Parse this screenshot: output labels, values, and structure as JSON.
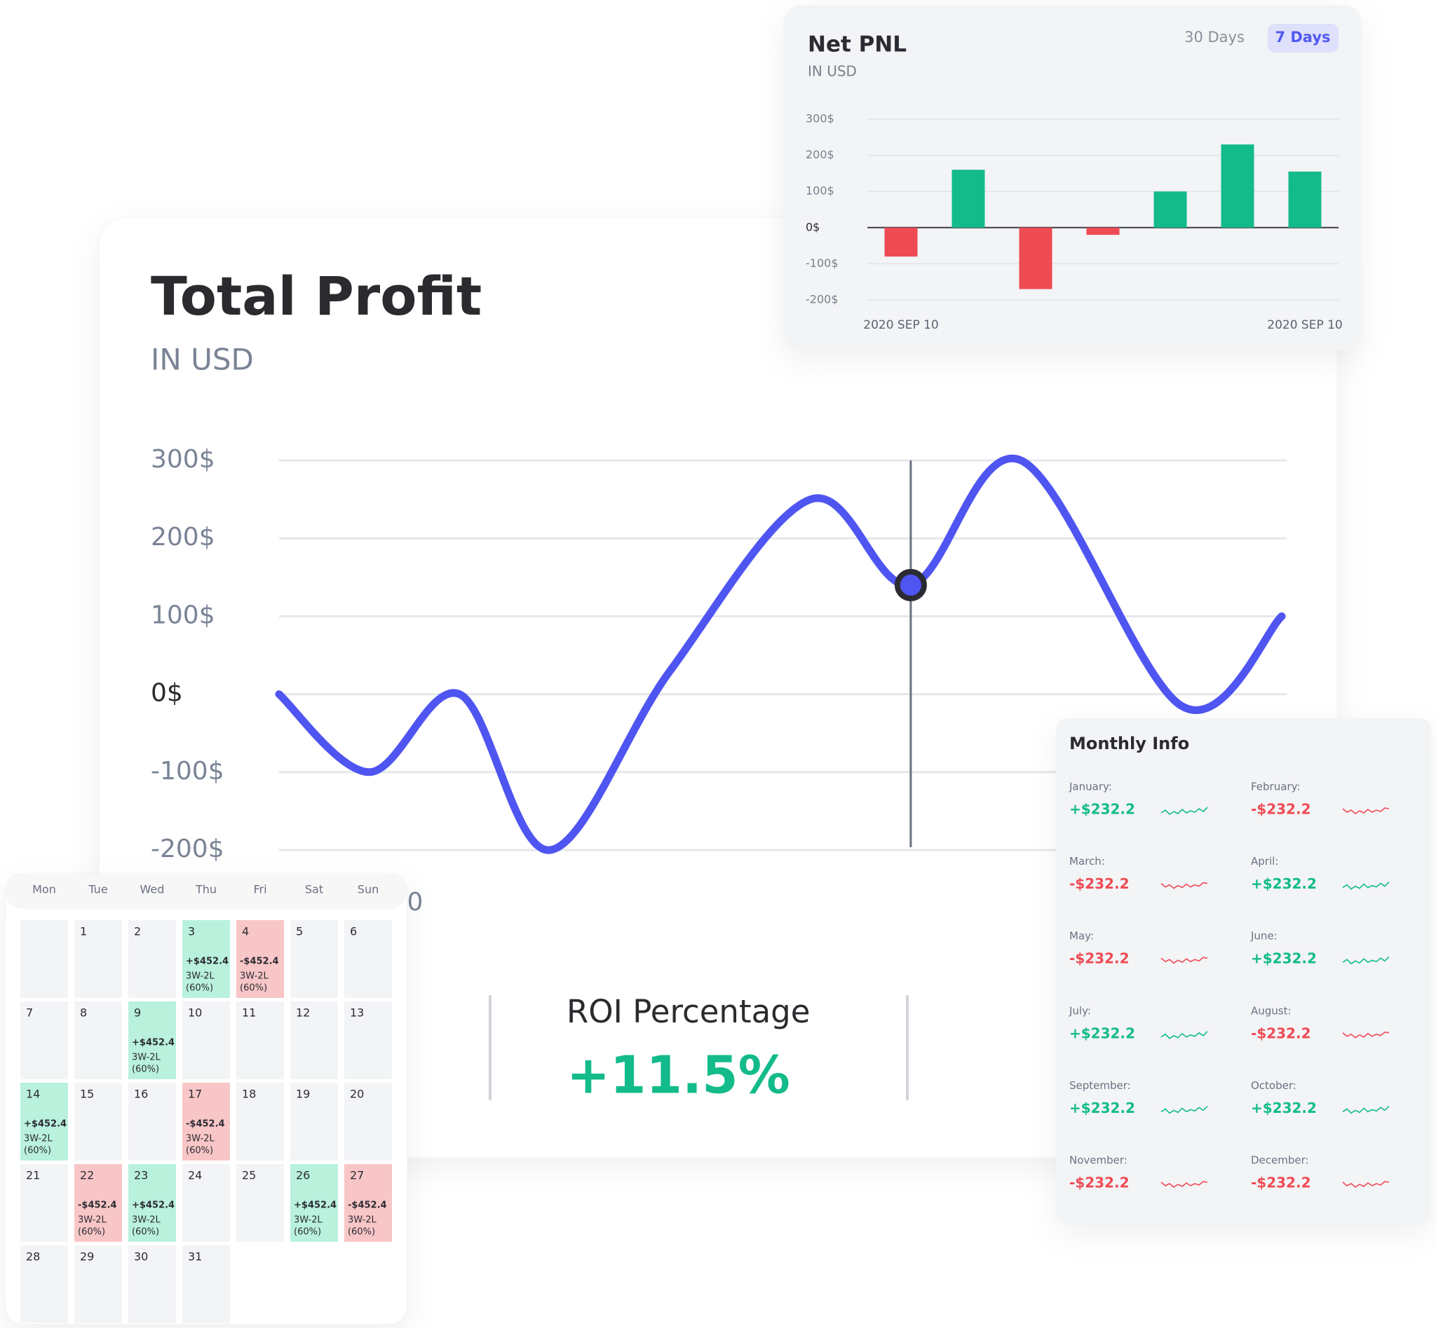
{
  "chart_data": [
    {
      "type": "bar",
      "title": "Net PNL",
      "subtitle": "IN USD",
      "categories": [
        "2020 SEP 10",
        null,
        null,
        null,
        null,
        null,
        "2020 SEP 10"
      ],
      "values": [
        -80,
        160,
        -170,
        -20,
        100,
        230,
        155
      ],
      "positive_color": "#13bb8a",
      "negative_color": "#ef4b55",
      "ylim": [
        -200,
        300
      ],
      "yticks": [
        {
          "value": 300,
          "label": "300$"
        },
        {
          "value": 200,
          "label": "200$"
        },
        {
          "value": 100,
          "label": "100$"
        },
        {
          "value": 0,
          "label": "0$"
        },
        {
          "value": -100,
          "label": "-100$"
        },
        {
          "value": -200,
          "label": "-200$"
        }
      ],
      "grid": true
    },
    {
      "type": "line",
      "title": "Total Profit",
      "subtitle": "IN USD",
      "x": [
        0,
        9,
        18,
        27,
        39,
        53,
        63,
        74,
        90,
        100
      ],
      "values": [
        0,
        -100,
        0,
        -200,
        30,
        250,
        140,
        300,
        -15,
        100
      ],
      "color": "#4f55f1",
      "xlim": [
        0,
        100
      ],
      "ylim": [
        -200,
        300
      ],
      "yticks": [
        {
          "value": 300,
          "label": "300$"
        },
        {
          "value": 200,
          "label": "200$"
        },
        {
          "value": 100,
          "label": "100$"
        },
        {
          "value": 0,
          "label": "0$"
        },
        {
          "value": -100,
          "label": "-100$"
        },
        {
          "value": -200,
          "label": "-200$"
        }
      ],
      "grid": true,
      "highlight": 6,
      "x_tick_label": "0"
    }
  ],
  "range_buttons": [
    "30 Days",
    "7 Days"
  ],
  "roi": {
    "label": "ROI Percentage",
    "value": "+11.5%"
  },
  "calendar": {
    "weekdays": [
      "Mon",
      "Tue",
      "Wed",
      "Thu",
      "Fri",
      "Sat",
      "Sun"
    ],
    "weeks": [
      [
        null,
        {
          "day": "1"
        },
        {
          "day": "2"
        },
        {
          "day": "3",
          "status": "profit",
          "pnl": "+$452.4",
          "record": "3W-2L",
          "pct": "(60%)"
        },
        {
          "day": "4",
          "status": "loss",
          "pnl": "-$452.4",
          "record": "3W-2L",
          "pct": "(60%)"
        },
        {
          "day": "5"
        },
        {
          "day": "6"
        }
      ],
      [
        {
          "day": "7"
        },
        {
          "day": "8"
        },
        {
          "day": "9",
          "status": "profit",
          "pnl": "+$452.4",
          "record": "3W-2L",
          "pct": "(60%)"
        },
        {
          "day": "10"
        },
        {
          "day": "11"
        },
        {
          "day": "12"
        },
        {
          "day": "13"
        }
      ],
      [
        {
          "day": "14",
          "status": "profit",
          "pnl": "+$452.4",
          "record": "3W-2L",
          "pct": "(60%)"
        },
        {
          "day": "15"
        },
        {
          "day": "16"
        },
        {
          "day": "17",
          "status": "loss",
          "pnl": "-$452.4",
          "record": "3W-2L",
          "pct": "(60%)"
        },
        {
          "day": "18"
        },
        {
          "day": "19"
        },
        {
          "day": "20"
        }
      ],
      [
        {
          "day": "21"
        },
        {
          "day": "22",
          "status": "loss",
          "pnl": "-$452.4",
          "record": "3W-2L",
          "pct": "(60%)"
        },
        {
          "day": "23",
          "status": "profit",
          "pnl": "+$452.4",
          "record": "3W-2L",
          "pct": "(60%)"
        },
        {
          "day": "24"
        },
        {
          "day": "25"
        },
        {
          "day": "26",
          "status": "profit",
          "pnl": "+$452.4",
          "record": "3W-2L",
          "pct": "(60%)"
        },
        {
          "day": "27",
          "status": "loss",
          "pnl": "-$452.4",
          "record": "3W-2L",
          "pct": "(60%)"
        }
      ],
      [
        {
          "day": "28"
        },
        {
          "day": "29"
        },
        {
          "day": "30"
        },
        {
          "day": "31"
        },
        null,
        null,
        null
      ]
    ]
  },
  "monthly_info": {
    "title": "Monthly Info",
    "months": [
      {
        "name": "January:",
        "value": "+$232.2"
      },
      {
        "name": "February:",
        "value": "-$232.2"
      },
      {
        "name": "March:",
        "value": "-$232.2"
      },
      {
        "name": "April:",
        "value": "+$232.2"
      },
      {
        "name": "May:",
        "value": "-$232.2"
      },
      {
        "name": "June:",
        "value": "+$232.2"
      },
      {
        "name": "July:",
        "value": "+$232.2"
      },
      {
        "name": "August:",
        "value": "-$232.2"
      },
      {
        "name": "September:",
        "value": "+$232.2"
      },
      {
        "name": "October:",
        "value": "+$232.2"
      },
      {
        "name": "November:",
        "value": "-$232.2"
      },
      {
        "name": "December:",
        "value": "-$232.2"
      }
    ]
  }
}
